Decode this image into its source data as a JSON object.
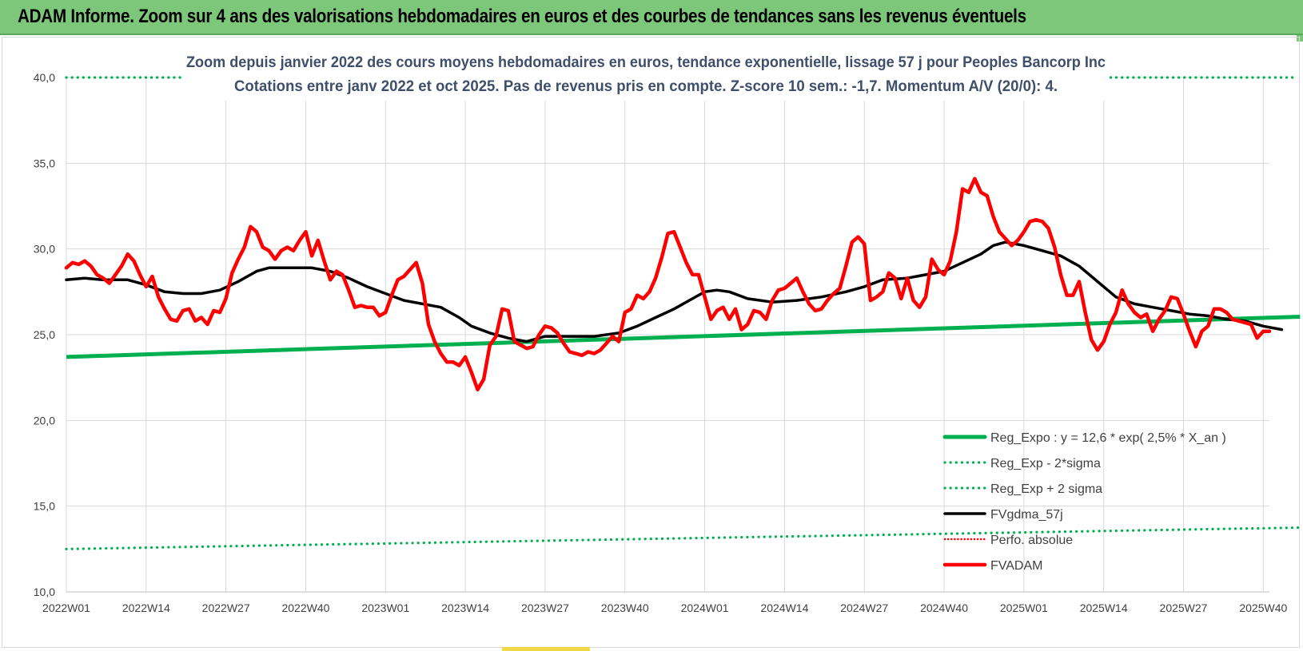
{
  "header": {
    "title": "ADAM Informe. Zoom sur 4 ans des valorisations hebdomadaires en euros et des courbes de tendances sans les revenus éventuels"
  },
  "colors": {
    "header_bg": "#7dc77a",
    "reg_expo": "#00b050",
    "fvgdma": "#000000",
    "fvadam": "#ff0000",
    "grid": "#d9d9d9",
    "title_text": "#3f4f6b"
  },
  "chart_data": {
    "type": "line",
    "title_line1": "Zoom depuis janvier 2022 des cours moyens hebdomadaires en euros, tendance exponentielle, lissage 57 j pour Peoples Bancorp Inc",
    "title_line2": "Cotations entre janv 2022 et oct 2025. Pas de revenus pris en compte. Z-score 10 sem.: -1,7.  Momentum A/V (20/0): 4.",
    "ylim": [
      10,
      40
    ],
    "yticks": [
      "10,0",
      "15,0",
      "20,0",
      "25,0",
      "30,0",
      "35,0",
      "40,0"
    ],
    "x_range": [
      0,
      196
    ],
    "xticks": [
      {
        "x": 0,
        "label": "2022W01"
      },
      {
        "x": 13,
        "label": "2022W14"
      },
      {
        "x": 26,
        "label": "2022W27"
      },
      {
        "x": 39,
        "label": "2022W40"
      },
      {
        "x": 52,
        "label": "2023W01"
      },
      {
        "x": 65,
        "label": "2023W14"
      },
      {
        "x": 78,
        "label": "2023W27"
      },
      {
        "x": 91,
        "label": "2023W40"
      },
      {
        "x": 104,
        "label": "2024W01"
      },
      {
        "x": 117,
        "label": "2024W14"
      },
      {
        "x": 130,
        "label": "2024W27"
      },
      {
        "x": 143,
        "label": "2024W40"
      },
      {
        "x": 156,
        "label": "2025W01"
      },
      {
        "x": 169,
        "label": "2025W14"
      },
      {
        "x": 182,
        "label": "2025W27"
      },
      {
        "x": 195,
        "label": "2025W40"
      }
    ],
    "legend": [
      {
        "label": "Reg_Expo : y = 12,6 * exp( 2,5% *  X_an )",
        "style": "solid-green"
      },
      {
        "label": "Reg_Exp - 2*sigma",
        "style": "dotted-green"
      },
      {
        "label": "Reg_Exp + 2 sigma",
        "style": "dotted-green"
      },
      {
        "label": "FVgdma_57j",
        "style": "solid-black"
      },
      {
        "label": "Perfo. absolue",
        "style": "dotted-red"
      },
      {
        "label": "FVADAM",
        "style": "solid-red"
      }
    ],
    "series": [
      {
        "name": "Reg_Expo",
        "type": "linear",
        "x": [
          0,
          201
        ],
        "y": [
          23.7,
          26.05
        ]
      },
      {
        "name": "Reg_Exp - 2*sigma",
        "type": "linear",
        "x": [
          0,
          201
        ],
        "y": [
          12.5,
          13.75
        ]
      },
      {
        "name": "Reg_Exp + 2 sigma",
        "type": "constant",
        "y": 40.0
      },
      {
        "name": "FVgdma_57j",
        "points": [
          [
            0,
            28.2
          ],
          [
            3,
            28.3
          ],
          [
            6,
            28.2
          ],
          [
            10,
            28.2
          ],
          [
            13,
            27.9
          ],
          [
            16,
            27.5
          ],
          [
            19,
            27.4
          ],
          [
            22,
            27.4
          ],
          [
            25,
            27.6
          ],
          [
            28,
            28.1
          ],
          [
            31,
            28.7
          ],
          [
            33,
            28.9
          ],
          [
            37,
            28.9
          ],
          [
            40,
            28.9
          ],
          [
            43,
            28.7
          ],
          [
            46,
            28.3
          ],
          [
            49,
            27.8
          ],
          [
            52,
            27.4
          ],
          [
            55,
            27.0
          ],
          [
            58,
            26.8
          ],
          [
            61,
            26.6
          ],
          [
            64,
            26.0
          ],
          [
            66,
            25.5
          ],
          [
            69,
            25.1
          ],
          [
            72,
            24.8
          ],
          [
            75,
            24.6
          ],
          [
            78,
            24.9
          ],
          [
            82,
            24.9
          ],
          [
            86,
            24.9
          ],
          [
            90,
            25.1
          ],
          [
            93,
            25.5
          ],
          [
            96,
            26.0
          ],
          [
            99,
            26.5
          ],
          [
            102,
            27.1
          ],
          [
            104,
            27.5
          ],
          [
            106,
            27.6
          ],
          [
            108,
            27.5
          ],
          [
            111,
            27.1
          ],
          [
            115,
            26.9
          ],
          [
            119,
            27.0
          ],
          [
            123,
            27.2
          ],
          [
            127,
            27.5
          ],
          [
            130,
            27.8
          ],
          [
            133,
            28.2
          ],
          [
            137,
            28.3
          ],
          [
            140,
            28.5
          ],
          [
            143,
            28.7
          ],
          [
            146,
            29.2
          ],
          [
            149,
            29.7
          ],
          [
            151,
            30.2
          ],
          [
            153,
            30.4
          ],
          [
            156,
            30.2
          ],
          [
            159,
            29.9
          ],
          [
            162,
            29.6
          ],
          [
            165,
            29.0
          ],
          [
            168,
            28.1
          ],
          [
            171,
            27.2
          ],
          [
            174,
            26.8
          ],
          [
            177,
            26.6
          ],
          [
            180,
            26.4
          ],
          [
            183,
            26.2
          ],
          [
            186,
            26.1
          ],
          [
            189,
            25.9
          ],
          [
            192,
            25.8
          ],
          [
            195,
            25.5
          ],
          [
            198,
            25.3
          ]
        ]
      },
      {
        "name": "FVADAM",
        "points": [
          [
            0,
            28.9
          ],
          [
            1,
            29.2
          ],
          [
            2,
            29.1
          ],
          [
            3,
            29.3
          ],
          [
            4,
            29.0
          ],
          [
            5,
            28.5
          ],
          [
            6,
            28.3
          ],
          [
            7,
            28.0
          ],
          [
            8,
            28.5
          ],
          [
            9,
            29.0
          ],
          [
            10,
            29.7
          ],
          [
            11,
            29.3
          ],
          [
            12,
            28.5
          ],
          [
            13,
            27.8
          ],
          [
            14,
            28.4
          ],
          [
            15,
            27.2
          ],
          [
            16,
            26.5
          ],
          [
            17,
            25.9
          ],
          [
            18,
            25.8
          ],
          [
            19,
            26.4
          ],
          [
            20,
            26.5
          ],
          [
            21,
            25.8
          ],
          [
            22,
            26.0
          ],
          [
            23,
            25.6
          ],
          [
            24,
            26.4
          ],
          [
            25,
            26.3
          ],
          [
            26,
            27.1
          ],
          [
            27,
            28.6
          ],
          [
            28,
            29.4
          ],
          [
            29,
            30.1
          ],
          [
            30,
            31.3
          ],
          [
            31,
            31.0
          ],
          [
            32,
            30.1
          ],
          [
            33,
            29.9
          ],
          [
            34,
            29.4
          ],
          [
            35,
            29.9
          ],
          [
            36,
            30.1
          ],
          [
            37,
            29.9
          ],
          [
            38,
            30.5
          ],
          [
            39,
            31.0
          ],
          [
            40,
            29.6
          ],
          [
            41,
            30.5
          ],
          [
            42,
            29.3
          ],
          [
            43,
            28.2
          ],
          [
            44,
            28.7
          ],
          [
            45,
            28.5
          ],
          [
            46,
            27.6
          ],
          [
            47,
            26.6
          ],
          [
            48,
            26.7
          ],
          [
            49,
            26.6
          ],
          [
            50,
            26.6
          ],
          [
            51,
            26.1
          ],
          [
            52,
            26.3
          ],
          [
            53,
            27.3
          ],
          [
            54,
            28.2
          ],
          [
            55,
            28.4
          ],
          [
            56,
            28.8
          ],
          [
            57,
            29.2
          ],
          [
            58,
            28.0
          ],
          [
            59,
            25.6
          ],
          [
            60,
            24.6
          ],
          [
            61,
            23.9
          ],
          [
            62,
            23.4
          ],
          [
            63,
            23.4
          ],
          [
            64,
            23.2
          ],
          [
            65,
            23.7
          ],
          [
            66,
            22.8
          ],
          [
            67,
            21.8
          ],
          [
            68,
            22.4
          ],
          [
            69,
            24.4
          ],
          [
            70,
            24.9
          ],
          [
            71,
            26.5
          ],
          [
            72,
            26.4
          ],
          [
            73,
            24.6
          ],
          [
            74,
            24.4
          ],
          [
            75,
            24.2
          ],
          [
            76,
            24.3
          ],
          [
            77,
            25.0
          ],
          [
            78,
            25.5
          ],
          [
            79,
            25.4
          ],
          [
            80,
            25.1
          ],
          [
            81,
            24.5
          ],
          [
            82,
            24.0
          ],
          [
            83,
            23.9
          ],
          [
            84,
            23.8
          ],
          [
            85,
            24.0
          ],
          [
            86,
            23.9
          ],
          [
            87,
            24.1
          ],
          [
            88,
            24.5
          ],
          [
            89,
            24.9
          ],
          [
            90,
            24.6
          ],
          [
            91,
            26.3
          ],
          [
            92,
            26.5
          ],
          [
            93,
            27.3
          ],
          [
            94,
            27.1
          ],
          [
            95,
            27.5
          ],
          [
            96,
            28.3
          ],
          [
            97,
            29.5
          ],
          [
            98,
            30.9
          ],
          [
            99,
            31.0
          ],
          [
            100,
            30.1
          ],
          [
            101,
            29.2
          ],
          [
            102,
            28.5
          ],
          [
            103,
            28.5
          ],
          [
            104,
            27.2
          ],
          [
            105,
            25.9
          ],
          [
            106,
            26.4
          ],
          [
            107,
            26.6
          ],
          [
            108,
            25.9
          ],
          [
            109,
            26.5
          ],
          [
            110,
            25.3
          ],
          [
            111,
            25.6
          ],
          [
            112,
            26.4
          ],
          [
            113,
            26.3
          ],
          [
            114,
            25.9
          ],
          [
            115,
            27.0
          ],
          [
            116,
            27.6
          ],
          [
            117,
            27.7
          ],
          [
            118,
            28.0
          ],
          [
            119,
            28.3
          ],
          [
            120,
            27.5
          ],
          [
            121,
            26.8
          ],
          [
            122,
            26.4
          ],
          [
            123,
            26.5
          ],
          [
            124,
            27.0
          ],
          [
            125,
            27.4
          ],
          [
            126,
            27.7
          ],
          [
            127,
            29.0
          ],
          [
            128,
            30.4
          ],
          [
            129,
            30.7
          ],
          [
            130,
            30.3
          ],
          [
            131,
            27.0
          ],
          [
            132,
            27.2
          ],
          [
            133,
            27.5
          ],
          [
            134,
            28.6
          ],
          [
            135,
            28.3
          ],
          [
            136,
            27.1
          ],
          [
            137,
            28.3
          ],
          [
            138,
            27.0
          ],
          [
            139,
            26.6
          ],
          [
            140,
            27.2
          ],
          [
            141,
            29.4
          ],
          [
            142,
            28.8
          ],
          [
            143,
            28.5
          ],
          [
            144,
            29.3
          ],
          [
            145,
            31.0
          ],
          [
            146,
            33.5
          ],
          [
            147,
            33.3
          ],
          [
            148,
            34.1
          ],
          [
            149,
            33.3
          ],
          [
            150,
            33.1
          ],
          [
            151,
            31.9
          ],
          [
            152,
            31.0
          ],
          [
            153,
            30.6
          ],
          [
            154,
            30.2
          ],
          [
            155,
            30.5
          ],
          [
            156,
            31.0
          ],
          [
            157,
            31.6
          ],
          [
            158,
            31.7
          ],
          [
            159,
            31.6
          ],
          [
            160,
            31.2
          ],
          [
            161,
            30.1
          ],
          [
            162,
            28.5
          ],
          [
            163,
            27.3
          ],
          [
            164,
            27.3
          ],
          [
            165,
            28.1
          ],
          [
            166,
            26.3
          ],
          [
            167,
            24.7
          ],
          [
            168,
            24.1
          ],
          [
            169,
            24.6
          ],
          [
            170,
            25.6
          ],
          [
            171,
            26.3
          ],
          [
            172,
            27.6
          ],
          [
            173,
            26.8
          ],
          [
            174,
            26.3
          ],
          [
            175,
            26.0
          ],
          [
            176,
            26.2
          ],
          [
            177,
            25.2
          ],
          [
            178,
            25.9
          ],
          [
            179,
            26.4
          ],
          [
            180,
            27.2
          ],
          [
            181,
            27.1
          ],
          [
            182,
            26.2
          ],
          [
            183,
            25.2
          ],
          [
            184,
            24.3
          ],
          [
            185,
            25.2
          ],
          [
            186,
            25.5
          ],
          [
            187,
            26.5
          ],
          [
            188,
            26.5
          ],
          [
            189,
            26.3
          ],
          [
            190,
            25.9
          ],
          [
            191,
            25.8
          ],
          [
            192,
            25.7
          ],
          [
            193,
            25.6
          ],
          [
            194,
            24.8
          ],
          [
            195,
            25.2
          ],
          [
            196,
            25.2
          ]
        ]
      }
    ]
  }
}
